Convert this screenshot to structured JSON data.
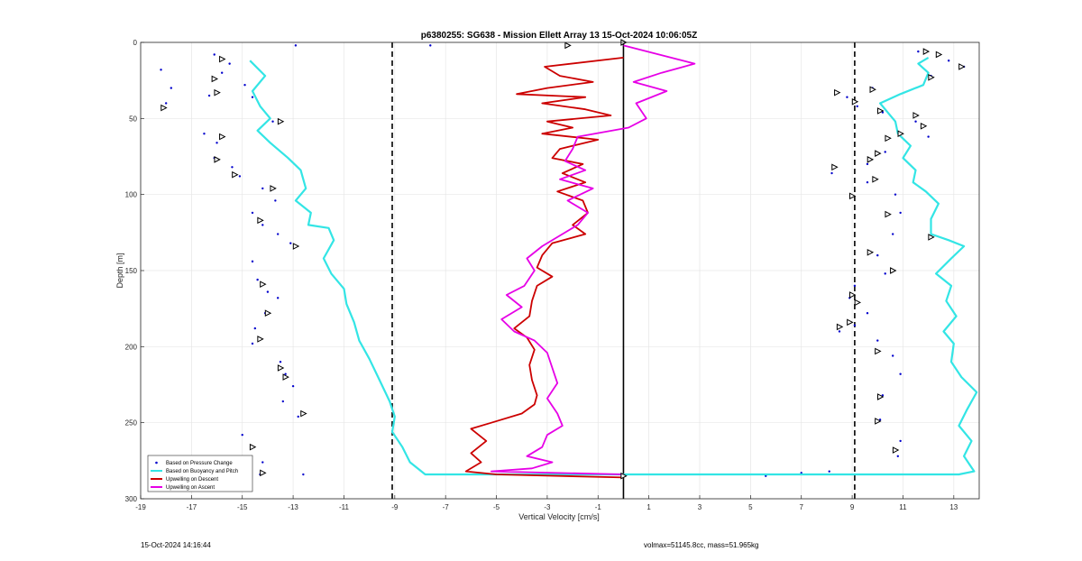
{
  "chart_data": {
    "type": "line",
    "title": "p6380255: SG638 - Mission Ellett Array 13 15-Oct-2024 10:06:05Z",
    "xlabel": "Vertical Velocity [cm/s]",
    "ylabel": "Depth [m]",
    "xlim": [
      -19,
      14
    ],
    "ylim": [
      0,
      300
    ],
    "y_reversed": true,
    "grid": true,
    "legend_placement": "bottom-left",
    "xticks": [
      "-19",
      "-17",
      "-15",
      "-13",
      "-11",
      "-9",
      "-7",
      "-5",
      "-3",
      "-1",
      "1",
      "3",
      "5",
      "7",
      "9",
      "11",
      "13"
    ],
    "yticks": [
      "0",
      "50",
      "100",
      "150",
      "200",
      "250",
      "300"
    ],
    "series": [
      {
        "name": "Based on Pressure Change",
        "color": "#0000cc",
        "style": "dots",
        "description_points": [
          [
            -18.2,
            18
          ],
          [
            -17.8,
            30
          ],
          [
            -18.0,
            40
          ],
          [
            -16.1,
            8
          ],
          [
            -15.8,
            20
          ],
          [
            -16.3,
            35
          ],
          [
            -15.5,
            14
          ],
          [
            -14.9,
            28
          ],
          [
            -14.6,
            36
          ],
          [
            -13.8,
            52
          ],
          [
            -16.5,
            60
          ],
          [
            -16.0,
            66
          ],
          [
            -16.1,
            76
          ],
          [
            -15.4,
            82
          ],
          [
            -15.1,
            88
          ],
          [
            -14.2,
            96
          ],
          [
            -13.7,
            104
          ],
          [
            -14.6,
            112
          ],
          [
            -14.2,
            120
          ],
          [
            -13.6,
            126
          ],
          [
            -13.1,
            132
          ],
          [
            -14.6,
            144
          ],
          [
            -14.4,
            156
          ],
          [
            -14.0,
            164
          ],
          [
            -13.6,
            168
          ],
          [
            -14.1,
            178
          ],
          [
            -14.5,
            188
          ],
          [
            -14.6,
            198
          ],
          [
            -13.5,
            210
          ],
          [
            -13.3,
            218
          ],
          [
            -13.0,
            226
          ],
          [
            -13.4,
            236
          ],
          [
            -12.8,
            246
          ],
          [
            -15.0,
            258
          ],
          [
            -14.6,
            266
          ],
          [
            -14.2,
            276
          ],
          [
            -14.3,
            284
          ],
          [
            -12.6,
            284
          ],
          [
            -7.6,
            2
          ],
          [
            -12.9,
            2
          ],
          [
            8.8,
            36
          ],
          [
            9.2,
            42
          ],
          [
            9.8,
            30
          ],
          [
            10.2,
            46
          ],
          [
            11.5,
            52
          ],
          [
            12.0,
            62
          ],
          [
            10.3,
            72
          ],
          [
            9.6,
            80
          ],
          [
            8.2,
            86
          ],
          [
            9.6,
            92
          ],
          [
            10.7,
            100
          ],
          [
            10.9,
            112
          ],
          [
            10.6,
            126
          ],
          [
            10.0,
            140
          ],
          [
            10.3,
            152
          ],
          [
            9.1,
            160
          ],
          [
            8.9,
            168
          ],
          [
            9.6,
            178
          ],
          [
            9.1,
            186
          ],
          [
            8.5,
            190
          ],
          [
            10.0,
            196
          ],
          [
            10.6,
            206
          ],
          [
            10.9,
            218
          ],
          [
            10.2,
            232
          ],
          [
            10.1,
            248
          ],
          [
            10.9,
            262
          ],
          [
            10.8,
            272
          ],
          [
            11.6,
            6
          ],
          [
            12.8,
            12
          ],
          [
            13.4,
            16
          ],
          [
            12.1,
            22
          ],
          [
            5.6,
            285
          ],
          [
            7.0,
            283
          ],
          [
            8.1,
            282
          ]
        ]
      },
      {
        "name": "Based on Buoyancy and Pitch",
        "color": "#33e5e5",
        "style": "line",
        "description_points": [
          [
            -14.7,
            12
          ],
          [
            -14.1,
            22
          ],
          [
            -14.6,
            32
          ],
          [
            -14.3,
            42
          ],
          [
            -13.9,
            50
          ],
          [
            -14.4,
            58
          ],
          [
            -13.9,
            66
          ],
          [
            -13.2,
            76
          ],
          [
            -12.7,
            84
          ],
          [
            -12.5,
            96
          ],
          [
            -12.9,
            104
          ],
          [
            -12.3,
            112
          ],
          [
            -12.4,
            120
          ],
          [
            -11.6,
            122
          ],
          [
            -11.4,
            130
          ],
          [
            -11.8,
            142
          ],
          [
            -11.5,
            152
          ],
          [
            -11.0,
            162
          ],
          [
            -10.9,
            172
          ],
          [
            -10.6,
            184
          ],
          [
            -10.4,
            196
          ],
          [
            -10.0,
            208
          ],
          [
            -9.6,
            222
          ],
          [
            -9.2,
            236
          ],
          [
            -9.0,
            246
          ],
          [
            -9.1,
            256
          ],
          [
            -8.7,
            266
          ],
          [
            -8.4,
            276
          ],
          [
            -7.8,
            284
          ],
          [
            0,
            284
          ],
          [
            8.0,
            284
          ],
          [
            13.2,
            284
          ],
          [
            13.8,
            282
          ],
          [
            13.4,
            272
          ],
          [
            13.7,
            262
          ],
          [
            13.2,
            252
          ],
          [
            13.5,
            242
          ],
          [
            13.9,
            230
          ],
          [
            13.3,
            220
          ],
          [
            12.9,
            210
          ],
          [
            13.0,
            198
          ],
          [
            12.6,
            190
          ],
          [
            13.1,
            180
          ],
          [
            12.7,
            170
          ],
          [
            12.9,
            160
          ],
          [
            12.3,
            152
          ],
          [
            12.9,
            142
          ],
          [
            13.4,
            134
          ],
          [
            12.8,
            130
          ],
          [
            12.1,
            126
          ],
          [
            12.1,
            116
          ],
          [
            12.4,
            106
          ],
          [
            11.9,
            98
          ],
          [
            11.4,
            92
          ],
          [
            11.5,
            84
          ],
          [
            11.0,
            76
          ],
          [
            11.3,
            68
          ],
          [
            10.8,
            60
          ],
          [
            10.7,
            52
          ],
          [
            10.4,
            46
          ],
          [
            10.1,
            40
          ],
          [
            10.9,
            34
          ],
          [
            11.8,
            28
          ],
          [
            12.0,
            20
          ],
          [
            11.6,
            14
          ],
          [
            12.0,
            10
          ]
        ]
      },
      {
        "name": "Upwelling on Descent",
        "color": "#cc0000",
        "style": "line",
        "description_points": [
          [
            0.0,
            10
          ],
          [
            -3.1,
            16
          ],
          [
            -2.5,
            22
          ],
          [
            -1.2,
            26
          ],
          [
            -3.0,
            30
          ],
          [
            -4.2,
            34
          ],
          [
            -1.5,
            36
          ],
          [
            -3.2,
            40
          ],
          [
            -1.5,
            44
          ],
          [
            -0.5,
            48
          ],
          [
            -3.0,
            52
          ],
          [
            -2.0,
            56
          ],
          [
            -3.2,
            60
          ],
          [
            -1.0,
            64
          ],
          [
            -2.5,
            70
          ],
          [
            -2.8,
            76
          ],
          [
            -1.6,
            80
          ],
          [
            -2.4,
            86
          ],
          [
            -1.5,
            92
          ],
          [
            -2.6,
            98
          ],
          [
            -1.6,
            104
          ],
          [
            -1.4,
            112
          ],
          [
            -2.0,
            120
          ],
          [
            -1.5,
            126
          ],
          [
            -2.8,
            132
          ],
          [
            -3.2,
            140
          ],
          [
            -3.4,
            148
          ],
          [
            -2.8,
            154
          ],
          [
            -3.4,
            160
          ],
          [
            -3.6,
            170
          ],
          [
            -3.7,
            180
          ],
          [
            -4.3,
            188
          ],
          [
            -3.8,
            194
          ],
          [
            -3.5,
            202
          ],
          [
            -3.7,
            212
          ],
          [
            -3.6,
            222
          ],
          [
            -3.4,
            232
          ],
          [
            -3.5,
            238
          ],
          [
            -4.0,
            244
          ],
          [
            -5.2,
            250
          ],
          [
            -6.0,
            254
          ],
          [
            -5.4,
            262
          ],
          [
            -6.0,
            270
          ],
          [
            -5.6,
            276
          ],
          [
            -6.2,
            282
          ],
          [
            -5.0,
            284
          ],
          [
            0.0,
            286
          ]
        ]
      },
      {
        "name": "Upwelling on Ascent",
        "color": "#e600e6",
        "style": "line",
        "description_points": [
          [
            0.0,
            2
          ],
          [
            2.8,
            14
          ],
          [
            1.5,
            20
          ],
          [
            0.4,
            26
          ],
          [
            1.7,
            32
          ],
          [
            0.5,
            40
          ],
          [
            0.9,
            50
          ],
          [
            0.2,
            56
          ],
          [
            -1.8,
            62
          ],
          [
            -2.0,
            70
          ],
          [
            -2.3,
            78
          ],
          [
            -1.5,
            84
          ],
          [
            -2.5,
            90
          ],
          [
            -1.2,
            96
          ],
          [
            -2.2,
            104
          ],
          [
            -1.4,
            112
          ],
          [
            -1.8,
            120
          ],
          [
            -2.4,
            126
          ],
          [
            -3.2,
            134
          ],
          [
            -3.8,
            142
          ],
          [
            -3.5,
            150
          ],
          [
            -3.9,
            160
          ],
          [
            -4.6,
            166
          ],
          [
            -4.0,
            174
          ],
          [
            -4.8,
            182
          ],
          [
            -4.3,
            190
          ],
          [
            -3.5,
            196
          ],
          [
            -3.0,
            204
          ],
          [
            -2.8,
            214
          ],
          [
            -2.6,
            224
          ],
          [
            -3.0,
            234
          ],
          [
            -2.6,
            244
          ],
          [
            -2.4,
            252
          ],
          [
            -3.0,
            258
          ],
          [
            -3.2,
            266
          ],
          [
            -3.8,
            272
          ],
          [
            -2.8,
            276
          ],
          [
            -3.6,
            280
          ],
          [
            -5.2,
            282
          ],
          [
            0.0,
            284
          ]
        ]
      }
    ],
    "reference_lines": [
      {
        "style": "dashed",
        "x": -9.1
      },
      {
        "style": "dashed",
        "x": 9.1
      },
      {
        "style": "solid",
        "x": 0
      }
    ],
    "markers": {
      "description": "open triangle markers along pressure-change dots",
      "points": [
        [
          -15.8,
          11
        ],
        [
          -16.1,
          24
        ],
        [
          -16.0,
          33
        ],
        [
          -18.1,
          43
        ],
        [
          -13.5,
          52
        ],
        [
          -15.8,
          62
        ],
        [
          -16.0,
          77
        ],
        [
          -15.3,
          87
        ],
        [
          -13.8,
          96
        ],
        [
          -14.3,
          117
        ],
        [
          -12.9,
          134
        ],
        [
          -14.2,
          159
        ],
        [
          -14.0,
          178
        ],
        [
          -14.3,
          195
        ],
        [
          -13.5,
          214
        ],
        [
          -13.3,
          220
        ],
        [
          -12.6,
          244
        ],
        [
          -14.6,
          266
        ],
        [
          -14.2,
          283
        ],
        [
          -2.2,
          2
        ],
        [
          0.0,
          0
        ],
        [
          0.0,
          285
        ],
        [
          11.9,
          6
        ],
        [
          12.4,
          8
        ],
        [
          13.3,
          16
        ],
        [
          12.1,
          23
        ],
        [
          9.8,
          31
        ],
        [
          8.4,
          33
        ],
        [
          9.1,
          39
        ],
        [
          10.1,
          45
        ],
        [
          11.5,
          48
        ],
        [
          11.8,
          55
        ],
        [
          10.9,
          60
        ],
        [
          10.4,
          63
        ],
        [
          10.0,
          73
        ],
        [
          9.7,
          77
        ],
        [
          8.3,
          82
        ],
        [
          9.9,
          90
        ],
        [
          9.0,
          101
        ],
        [
          10.4,
          113
        ],
        [
          12.1,
          128
        ],
        [
          9.7,
          138
        ],
        [
          10.6,
          150
        ],
        [
          9.0,
          166
        ],
        [
          9.2,
          171
        ],
        [
          8.9,
          184
        ],
        [
          8.5,
          187
        ],
        [
          10.0,
          203
        ],
        [
          10.1,
          233
        ],
        [
          10.0,
          249
        ],
        [
          10.7,
          268
        ]
      ]
    }
  },
  "footer": {
    "timestamp": "15-Oct-2024 14:16:44",
    "stats": "volmax=51145.8cc, mass=51.965kg"
  }
}
